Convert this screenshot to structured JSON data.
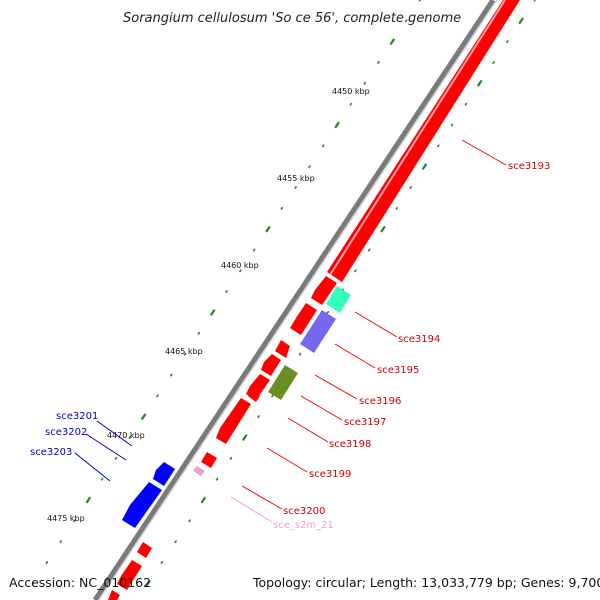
{
  "title": "Sorangium cellulosum 'So ce 56', complete genome",
  "footer": {
    "accession": "Accession: NC_010162",
    "topology": "Topology: circular; Length: 13,033,779 bp; Genes: 9,700"
  },
  "ticks": [
    "4450 kbp",
    "4455 kbp",
    "4460 kbp",
    "4465 kbp",
    "4470 kbp",
    "4475 kbp"
  ],
  "labels": [
    {
      "text": "sce3193",
      "color": "#cc0000"
    },
    {
      "text": "sce3194",
      "color": "#cc0000"
    },
    {
      "text": "sce3195",
      "color": "#cc0000"
    },
    {
      "text": "sce3196",
      "color": "#cc0000"
    },
    {
      "text": "sce3197",
      "color": "#cc0000"
    },
    {
      "text": "sce3198",
      "color": "#cc0000"
    },
    {
      "text": "sce3199",
      "color": "#cc0000"
    },
    {
      "text": "sce3200",
      "color": "#cc0000"
    },
    {
      "text": "sce_s2m_21",
      "color": "#f0a0c8"
    },
    {
      "text": "sce3201",
      "color": "#0000cc"
    },
    {
      "text": "sce3202",
      "color": "#0000cc"
    },
    {
      "text": "sce3203",
      "color": "#0000cc"
    }
  ],
  "colors": {
    "backbone": "#888888",
    "forward_gene": "#ff0000",
    "reverse_gene": "#0000ff",
    "teal_gene": "#33ffbb",
    "purple_gene": "#7766ee",
    "olive_gene": "#6b8e23",
    "dot_track": "#1a8a1a"
  }
}
